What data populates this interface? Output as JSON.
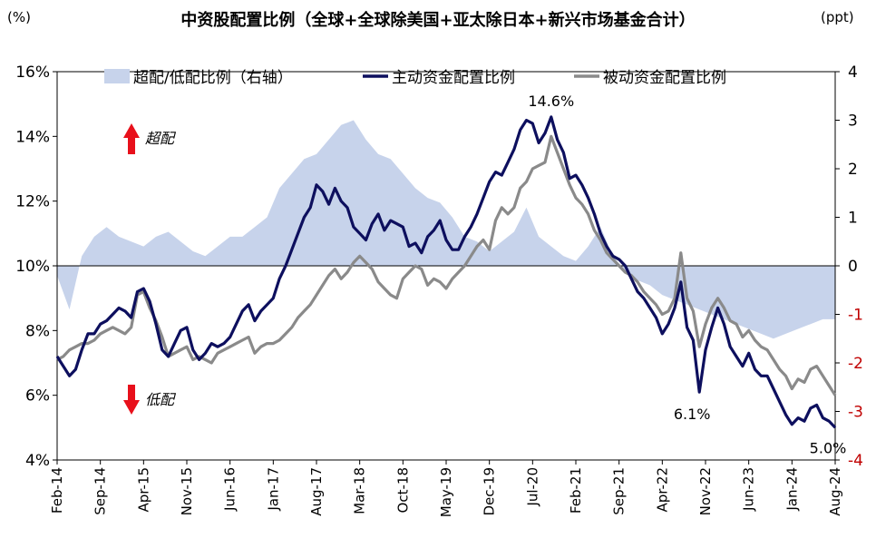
{
  "chart_data": {
    "type": "line",
    "title": "中资股配置比例（全球+全球除美国+亚太除日本+新兴市场基金合计）",
    "left_unit": "(%)",
    "right_unit": "(ppt)",
    "y_left": {
      "min": 4,
      "max": 16,
      "ticks": [
        "4%",
        "6%",
        "8%",
        "10%",
        "12%",
        "14%",
        "16%"
      ],
      "tick_values": [
        4,
        6,
        8,
        10,
        12,
        14,
        16
      ]
    },
    "y_right": {
      "min": -4,
      "max": 4,
      "ticks": [
        "-4",
        "-3",
        "-2",
        "-1",
        "0",
        "1",
        "2",
        "3",
        "4"
      ],
      "tick_values": [
        -4,
        -3,
        -2,
        -1,
        0,
        1,
        2,
        3,
        4
      ],
      "negative_color": "#c00000"
    },
    "x_ticks": [
      "Feb-14",
      "Sep-14",
      "Apr-15",
      "Nov-15",
      "Jun-16",
      "Jan-17",
      "Aug-17",
      "Mar-18",
      "Oct-18",
      "May-19",
      "Dec-19",
      "Jul-20",
      "Feb-21",
      "Sep-21",
      "Apr-22",
      "Nov-22",
      "Jun-23",
      "Jan-24",
      "Aug-24"
    ],
    "x_tick_index": [
      0,
      7,
      14,
      21,
      28,
      35,
      42,
      49,
      56,
      63,
      70,
      77,
      84,
      91,
      98,
      105,
      112,
      119,
      126
    ],
    "legend": [
      "超配/低配比例（右轴）",
      "主动资金配置比例",
      "被动资金配置比例"
    ],
    "colors": {
      "area": "#c7d3eb",
      "active": "#0d0f5e",
      "passive": "#8a8a8a",
      "arrow": "#e8101b"
    },
    "annotations": [
      {
        "text": "14.6%",
        "index": 80,
        "value": 14.6
      },
      {
        "text": "6.1%",
        "index": 104,
        "value": 6.1
      },
      {
        "text": "5.0%",
        "index": 126,
        "value": 5.0
      }
    ],
    "over_label": "超配",
    "under_label": "低配",
    "series": [
      {
        "name": "超配/低配比例（右轴）",
        "axis": "right",
        "type": "area",
        "x": [
          0,
          2,
          4,
          6,
          8,
          10,
          12,
          14,
          16,
          18,
          20,
          22,
          24,
          26,
          28,
          30,
          32,
          34,
          36,
          38,
          40,
          42,
          44,
          46,
          48,
          50,
          52,
          54,
          56,
          58,
          60,
          62,
          64,
          66,
          68,
          70,
          72,
          74,
          76,
          78,
          80,
          82,
          84,
          86,
          88,
          90,
          92,
          94,
          96,
          98,
          100,
          102,
          104,
          106,
          108,
          110,
          112,
          114,
          116,
          118,
          120,
          122,
          124,
          126
        ],
        "values": [
          -0.2,
          -0.9,
          0.2,
          0.6,
          0.8,
          0.6,
          0.5,
          0.4,
          0.6,
          0.7,
          0.5,
          0.3,
          0.2,
          0.4,
          0.6,
          0.6,
          0.8,
          1.0,
          1.6,
          1.9,
          2.2,
          2.3,
          2.6,
          2.9,
          3.0,
          2.6,
          2.3,
          2.2,
          1.9,
          1.6,
          1.4,
          1.3,
          1.0,
          0.6,
          0.5,
          0.3,
          0.5,
          0.7,
          1.2,
          0.6,
          0.4,
          0.2,
          0.1,
          0.4,
          0.8,
          0.2,
          -0.1,
          -0.3,
          -0.4,
          -0.6,
          -0.7,
          -0.8,
          -0.9,
          -1.0,
          -1.1,
          -1.2,
          -1.3,
          -1.4,
          -1.5,
          -1.4,
          -1.3,
          -1.2,
          -1.1,
          -1.1
        ]
      },
      {
        "name": "主动资金配置比例",
        "axis": "left",
        "values": [
          7.2,
          6.9,
          6.6,
          6.8,
          7.4,
          7.9,
          7.9,
          8.2,
          8.3,
          8.5,
          8.7,
          8.6,
          8.4,
          9.2,
          9.3,
          8.9,
          8.2,
          7.4,
          7.2,
          7.6,
          8.0,
          8.1,
          7.4,
          7.1,
          7.3,
          7.6,
          7.5,
          7.6,
          7.8,
          8.2,
          8.6,
          8.8,
          8.3,
          8.6,
          8.8,
          9.0,
          9.6,
          10.0,
          10.5,
          11.0,
          11.5,
          11.8,
          12.5,
          12.3,
          11.9,
          12.4,
          12.0,
          11.8,
          11.2,
          11.0,
          10.8,
          11.3,
          11.6,
          11.1,
          11.4,
          11.3,
          11.2,
          10.6,
          10.7,
          10.4,
          10.9,
          11.1,
          11.4,
          10.8,
          10.5,
          10.5,
          10.9,
          11.2,
          11.6,
          12.1,
          12.6,
          12.9,
          12.8,
          13.2,
          13.6,
          14.2,
          14.5,
          14.4,
          13.8,
          14.1,
          14.6,
          13.9,
          13.5,
          12.7,
          12.8,
          12.5,
          12.1,
          11.6,
          11.0,
          10.6,
          10.3,
          10.2,
          10.0,
          9.6,
          9.2,
          9.0,
          8.7,
          8.4,
          7.9,
          8.2,
          8.7,
          9.5,
          8.1,
          7.7,
          6.1,
          7.4,
          8.1,
          8.7,
          8.2,
          7.5,
          7.2,
          6.9,
          7.3,
          6.8,
          6.6,
          6.6,
          6.2,
          5.8,
          5.4,
          5.1,
          5.3,
          5.2,
          5.6,
          5.7,
          5.3,
          5.2,
          5.0
        ]
      },
      {
        "name": "被动资金配置比例",
        "axis": "left",
        "values": [
          7.1,
          7.2,
          7.4,
          7.5,
          7.6,
          7.6,
          7.7,
          7.9,
          8.0,
          8.1,
          8.0,
          7.9,
          8.1,
          9.1,
          9.2,
          8.7,
          8.3,
          7.8,
          7.2,
          7.3,
          7.4,
          7.5,
          7.1,
          7.2,
          7.1,
          7.0,
          7.3,
          7.4,
          7.5,
          7.6,
          7.7,
          7.8,
          7.3,
          7.5,
          7.6,
          7.6,
          7.7,
          7.9,
          8.1,
          8.4,
          8.6,
          8.8,
          9.1,
          9.4,
          9.7,
          9.9,
          9.6,
          9.8,
          10.1,
          10.3,
          10.1,
          9.9,
          9.5,
          9.3,
          9.1,
          9.0,
          9.6,
          9.8,
          10.0,
          9.9,
          9.4,
          9.6,
          9.5,
          9.3,
          9.6,
          9.8,
          10.0,
          10.3,
          10.6,
          10.8,
          10.5,
          11.4,
          11.8,
          11.6,
          11.8,
          12.4,
          12.6,
          13.0,
          13.1,
          13.2,
          14.0,
          13.5,
          13.0,
          12.5,
          12.1,
          11.9,
          11.6,
          11.1,
          10.8,
          10.4,
          10.2,
          10.0,
          9.8,
          9.7,
          9.5,
          9.2,
          9.0,
          8.8,
          8.5,
          8.6,
          9.0,
          10.4,
          9.0,
          8.6,
          7.5,
          8.2,
          8.7,
          9.0,
          8.7,
          8.3,
          8.2,
          7.8,
          8.0,
          7.7,
          7.5,
          7.4,
          7.1,
          6.8,
          6.6,
          6.2,
          6.5,
          6.4,
          6.8,
          6.9,
          6.6,
          6.3,
          6.0
        ]
      }
    ]
  }
}
